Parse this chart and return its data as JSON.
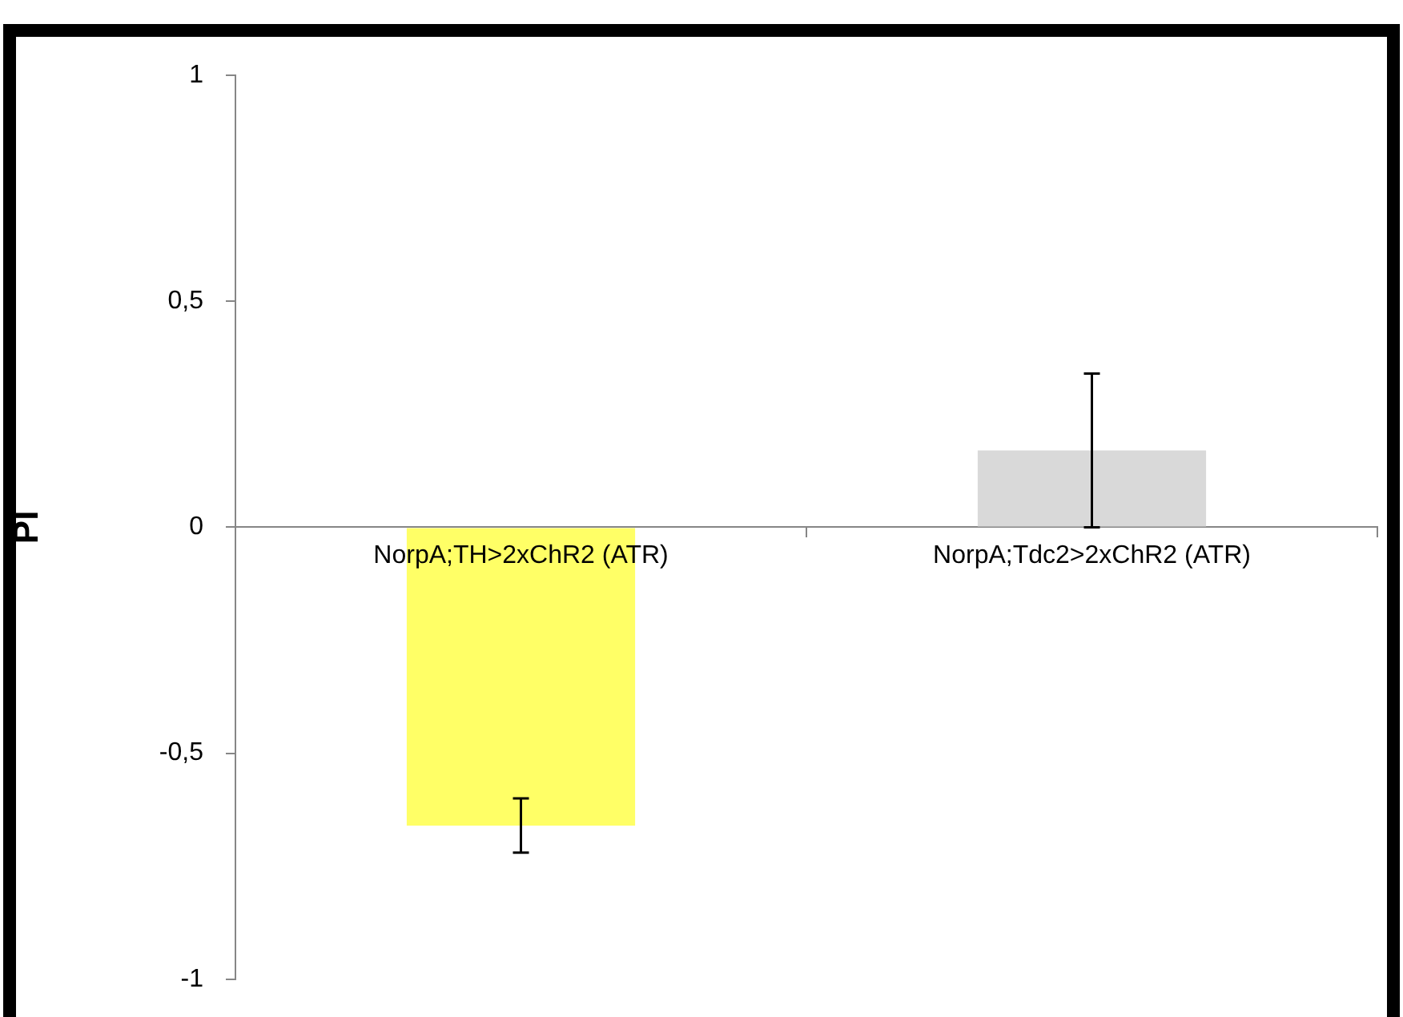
{
  "chart_data": {
    "type": "bar",
    "ylabel": "PI",
    "categories": [
      "NorpA;TH>2xChR2 (ATR)",
      "NorpA;Tdc2>2xChR2 (ATR)"
    ],
    "values": [
      -0.66,
      0.17
    ],
    "colors": [
      "#ffff66",
      "#d9d9d9"
    ],
    "errors": [
      0.06,
      0.17
    ],
    "ylim": [
      -1,
      1
    ],
    "yticks": [
      -1,
      {
        "value": -0.5,
        "label": "-0,5"
      },
      0,
      {
        "value": 0.5,
        "label": "0,5"
      },
      1
    ],
    "grid": false,
    "legend": false
  }
}
